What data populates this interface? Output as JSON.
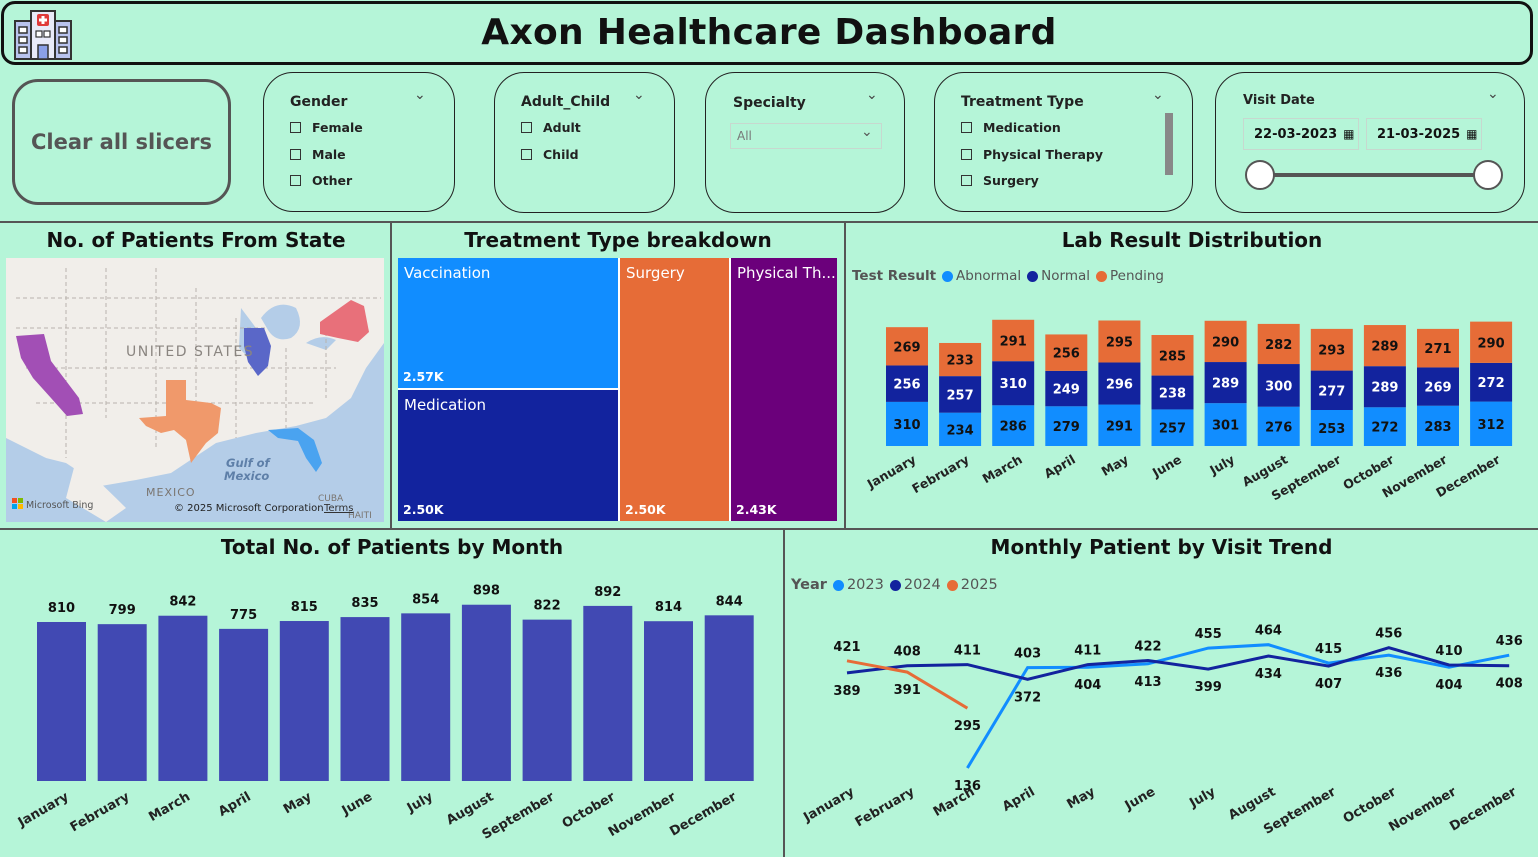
{
  "header": {
    "title": "Axon Healthcare Dashboard",
    "icon": "hospital-icon"
  },
  "slicers": {
    "clear_label": "Clear all slicers",
    "gender": {
      "title": "Gender",
      "options": [
        "Female",
        "Male",
        "Other"
      ]
    },
    "adult_child": {
      "title": "Adult_Child",
      "options": [
        "Adult",
        "Child"
      ]
    },
    "specialty": {
      "title": "Specialty",
      "selected": "All"
    },
    "treatment_type": {
      "title": "Treatment Type",
      "options": [
        "Medication",
        "Physical Therapy",
        "Surgery"
      ]
    },
    "visit_date": {
      "title": "Visit Date",
      "start": "22-03-2023",
      "end": "21-03-2025"
    }
  },
  "map_panel": {
    "title": "No. of Patients From State",
    "labels": {
      "country": "UNITED STATES",
      "gulf": "Gulf of",
      "gulf2": "Mexico",
      "mexico": "MEXICO",
      "cuba": "CUBA",
      "haiti": "HAITI"
    },
    "bing": "Microsoft Bing",
    "copyright": "© 2025 Microsoft Corporation",
    "terms": "Terms",
    "highlight_colors": {
      "california": "#a24fb5",
      "texas": "#f0996b",
      "illinois": "#5a67c8",
      "florida": "#4aa3f0",
      "new_york": "#e8707a"
    }
  },
  "treatment_panel": {
    "title": "Treatment Type breakdown",
    "items": [
      {
        "name": "Vaccination",
        "value": "2.57K",
        "color": "#118dff"
      },
      {
        "name": "Medication",
        "value": "2.50K",
        "color": "#12239e"
      },
      {
        "name": "Surgery",
        "value": "2.50K",
        "color": "#e66c37"
      },
      {
        "name": "Physical Th...",
        "value": "2.43K",
        "color": "#6b007b"
      }
    ]
  },
  "lab_panel": {
    "title": "Lab Result Distribution",
    "legend_title": "Test Result"
  },
  "monthly_panel": {
    "title": "Total No. of Patients by Month"
  },
  "trend_panel": {
    "title": "Monthly Patient by Visit Trend",
    "legend_title": "Year"
  },
  "chart_data": [
    {
      "type": "bar",
      "stacked": true,
      "title": "Lab Result Distribution",
      "categories": [
        "January",
        "February",
        "March",
        "April",
        "May",
        "June",
        "July",
        "August",
        "September",
        "October",
        "November",
        "December"
      ],
      "series": [
        {
          "name": "Abnormal",
          "color": "#118dff",
          "values": [
            310,
            234,
            286,
            279,
            291,
            257,
            301,
            276,
            253,
            272,
            283,
            312
          ]
        },
        {
          "name": "Normal",
          "color": "#12239e",
          "values": [
            256,
            257,
            310,
            249,
            296,
            238,
            289,
            300,
            277,
            289,
            269,
            272
          ]
        },
        {
          "name": "Pending",
          "color": "#e66c37",
          "values": [
            269,
            233,
            291,
            256,
            295,
            285,
            290,
            282,
            293,
            289,
            271,
            290
          ]
        }
      ],
      "legend": "top-left"
    },
    {
      "type": "bar",
      "title": "Total No. of Patients by Month",
      "categories": [
        "January",
        "February",
        "March",
        "April",
        "May",
        "June",
        "July",
        "August",
        "September",
        "October",
        "November",
        "December"
      ],
      "values": [
        810,
        799,
        842,
        775,
        815,
        835,
        854,
        898,
        822,
        892,
        814,
        844
      ],
      "color": "#4149b3"
    },
    {
      "type": "line",
      "title": "Monthly Patient by Visit Trend",
      "categories": [
        "January",
        "February",
        "March",
        "April",
        "May",
        "June",
        "July",
        "August",
        "September",
        "October",
        "November",
        "December"
      ],
      "series": [
        {
          "name": "2023",
          "color": "#118dff",
          "values": [
            null,
            null,
            136,
            403,
            404,
            413,
            455,
            464,
            415,
            436,
            404,
            436
          ]
        },
        {
          "name": "2024",
          "color": "#12239e",
          "values": [
            389,
            408,
            411,
            372,
            411,
            422,
            399,
            434,
            407,
            456,
            410,
            408
          ]
        },
        {
          "name": "2025",
          "color": "#e66c37",
          "values": [
            421,
            391,
            295,
            null,
            null,
            null,
            null,
            null,
            null,
            null,
            null,
            null
          ]
        }
      ],
      "legend": "top-left"
    }
  ]
}
